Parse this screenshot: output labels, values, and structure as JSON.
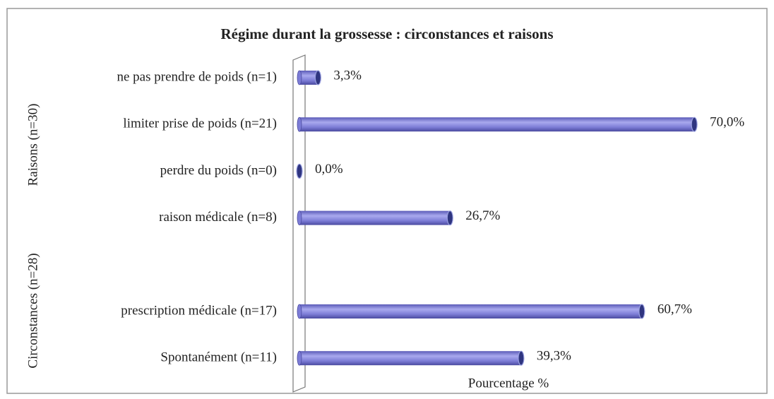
{
  "chart_data": {
    "type": "bar",
    "orientation": "horizontal",
    "title": "Régime durant la grossesse : circonstances et raisons",
    "xlabel": "Pourcentage %",
    "group_labels": [
      "Raisons (n=30)",
      "Circonstances (n=28)"
    ],
    "categories": [
      "ne pas prendre de poids (n=1)",
      "limiter prise de poids (n=21)",
      "perdre du poids (n=0)",
      "raison médicale (n=8)",
      null,
      "prescription médicale (n=17)",
      "Spontanément (n=11)"
    ],
    "values": [
      3.3,
      70.0,
      0.0,
      26.7,
      null,
      60.7,
      39.3
    ],
    "value_labels": [
      "3,3%",
      "70,0%",
      "0,0%",
      "26,7%",
      null,
      "60,7%",
      "39,3%"
    ],
    "color": "#7c7cd6",
    "xlim": [
      0,
      80
    ]
  }
}
